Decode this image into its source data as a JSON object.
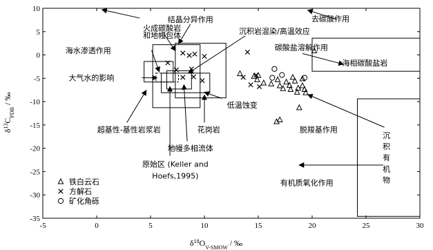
{
  "chart_data": {
    "type": "scatter",
    "xlim": [
      -5,
      30
    ],
    "ylim": [
      -35,
      10
    ],
    "xticks": [
      -5,
      0,
      5,
      10,
      15,
      20,
      25,
      30
    ],
    "yticks": [
      10,
      5,
      0,
      -5,
      -10,
      -15,
      -20,
      -25,
      -30,
      -35
    ],
    "xlabel": {
      "d": "δ",
      "sup": "18",
      "o": "O",
      "sub": "V-SMOW",
      "unit": " / ‰"
    },
    "ylabel": {
      "d": "δ",
      "sup": "13",
      "c": "C",
      "sub": "PDB",
      "unit": " / ‰"
    },
    "legend": [
      {
        "marker": "triangle",
        "label": "铁白云石"
      },
      {
        "marker": "cross",
        "label": "方解石"
      },
      {
        "marker": "circle",
        "label": "矿化角砾"
      }
    ],
    "series": [
      {
        "name": "铁白云石",
        "marker": "triangle",
        "points": [
          [
            13.3,
            -4.0
          ],
          [
            14.6,
            -4.6
          ],
          [
            15.0,
            -4.4
          ],
          [
            14.9,
            -5.3
          ],
          [
            15.5,
            -6.0
          ],
          [
            16.8,
            -5.3
          ],
          [
            16.2,
            -6.2
          ],
          [
            17.0,
            -6.6
          ],
          [
            17.3,
            -7.2
          ],
          [
            17.6,
            -5.8
          ],
          [
            17.9,
            -6.5
          ],
          [
            18.2,
            -4.8
          ],
          [
            18.4,
            -5.6
          ],
          [
            18.0,
            -7.4
          ],
          [
            18.7,
            -7.1
          ],
          [
            18.6,
            -8.0
          ],
          [
            19.1,
            -6.6
          ],
          [
            19.3,
            -7.4
          ],
          [
            19.4,
            -8.1
          ],
          [
            19.1,
            -5.1
          ],
          [
            18.8,
            -11.3
          ],
          [
            16.7,
            -14.3
          ],
          [
            17.0,
            -13.9
          ],
          [
            20.2,
            0.9
          ]
        ]
      },
      {
        "name": "方解石",
        "marker": "cross",
        "points": [
          [
            6.6,
            -1.7
          ],
          [
            7.4,
            -3.2
          ],
          [
            8.0,
            0.4
          ],
          [
            8.6,
            -0.1
          ],
          [
            9.1,
            0.2
          ],
          [
            10.0,
            -0.3
          ],
          [
            8.0,
            -4.8
          ],
          [
            9.0,
            -4.7
          ],
          [
            8.8,
            -3.0
          ],
          [
            9.8,
            -5.5
          ],
          [
            14.0,
            0.6
          ],
          [
            13.6,
            -4.8
          ],
          [
            14.3,
            -6.4
          ],
          [
            14.8,
            -4.3
          ],
          [
            15.1,
            -6.8
          ]
        ]
      },
      {
        "name": "矿化角砾",
        "marker": "circle",
        "points": [
          [
            16.5,
            -3.0
          ],
          [
            17.2,
            -4.3
          ],
          [
            16.3,
            -4.9
          ],
          [
            19.3,
            -4.9
          ]
        ]
      }
    ],
    "boxes": [
      {
        "x": [
          4.4,
          7.1
        ],
        "y": [
          -5.8,
          -1.4
        ]
      },
      {
        "x": [
          5.2,
          9.6
        ],
        "y": [
          -11.3,
          2.2
        ]
      },
      {
        "x": [
          6.0,
          10.5
        ],
        "y": [
          -8.1,
          -3.9
        ]
      },
      {
        "x": [
          6.5,
          8.8
        ],
        "y": [
          -7.3,
          -3.4
        ]
      },
      {
        "x": [
          7.3,
          12.0
        ],
        "y": [
          -9.2,
          2.5
        ]
      },
      {
        "x": [
          20.0,
          30.0
        ],
        "y": [
          -3.5,
          3.6
        ]
      },
      {
        "x": [
          24.2,
          30.0
        ],
        "y": [
          -34.6,
          -9.4
        ]
      }
    ],
    "dashed_box": {
      "x": [
        5.5,
        7.6
      ],
      "y": [
        -5.8,
        -3.9
      ]
    },
    "annotations": [
      {
        "text": "火成碳酸岩",
        "x": 4.3,
        "y": 5.8,
        "anchor": "start"
      },
      {
        "text": "和地幔包体",
        "x": 4.3,
        "y": 4.2,
        "anchor": "start"
      },
      {
        "text": "结晶分异作用",
        "x": 8.7,
        "y": 7.6,
        "anchor": "middle"
      },
      {
        "text": "沉积岩混染/高温效应",
        "x": 16.5,
        "y": 5.1,
        "anchor": "middle"
      },
      {
        "text": "去碳酸作用",
        "x": 21.7,
        "y": 7.8,
        "anchor": "middle"
      },
      {
        "text": "海水渗透作用",
        "x": -2.9,
        "y": 1.0,
        "anchor": "start"
      },
      {
        "text": "碳酸盐溶解作用",
        "x": 19.0,
        "y": 1.6,
        "anchor": "middle"
      },
      {
        "text": "海相碳酸盐岩",
        "x": 24.9,
        "y": -1.7,
        "anchor": "middle"
      },
      {
        "text": "大气水的影响",
        "x": -2.6,
        "y": -4.9,
        "anchor": "start"
      },
      {
        "text": "低温蚀变",
        "x": 12.1,
        "y": -10.7,
        "anchor": "start"
      },
      {
        "text": "超基性-基性岩浆岩",
        "x": 3.0,
        "y": -16.0,
        "anchor": "middle"
      },
      {
        "text": "花岗岩",
        "x": 10.4,
        "y": -16.0,
        "anchor": "middle"
      },
      {
        "text": "脱羧基作用",
        "x": 20.6,
        "y": -16.0,
        "anchor": "middle"
      },
      {
        "text": "地幔多相流体",
        "x": 8.7,
        "y": -20.0,
        "anchor": "middle"
      },
      {
        "text": "原始区 (Keller and",
        "x": 7.3,
        "y": -23.4,
        "anchor": "middle"
      },
      {
        "text": "Hoefs,1995)",
        "x": 7.3,
        "y": -25.9,
        "anchor": "middle"
      },
      {
        "text": "有机质氧化作用",
        "x": 19.5,
        "y": -27.4,
        "anchor": "middle"
      },
      {
        "text": "沉",
        "x": 26.9,
        "y": -17.2,
        "anchor": "middle"
      },
      {
        "text": "积",
        "x": 26.9,
        "y": -19.6,
        "anchor": "middle"
      },
      {
        "text": "有",
        "x": 26.9,
        "y": -22.0,
        "anchor": "middle"
      },
      {
        "text": "机",
        "x": 26.9,
        "y": -24.4,
        "anchor": "middle"
      },
      {
        "text": "物",
        "x": 26.9,
        "y": -26.8,
        "anchor": "middle"
      }
    ],
    "arrows": [
      {
        "from": [
          8.7,
          6.6
        ],
        "to": [
          7.6,
          2.4
        ]
      },
      {
        "from": [
          13.8,
          4.1
        ],
        "to": [
          8.5,
          -3.9
        ]
      },
      {
        "from": [
          22.3,
          7.6
        ],
        "to": [
          19.6,
          9.6
        ]
      },
      {
        "from": [
          5.1,
          1.0
        ],
        "to": [
          5.8,
          -3.6
        ]
      },
      {
        "from": [
          6.3,
          4.3
        ],
        "to": [
          7.3,
          0.9
        ]
      },
      {
        "from": [
          4.0,
          7.9
        ],
        "to": [
          0.5,
          9.7
        ]
      },
      {
        "from": [
          19.1,
          0.3
        ],
        "to": [
          22.9,
          -2.0
        ]
      },
      {
        "from": [
          4.2,
          -4.9
        ],
        "to": [
          5.6,
          -4.9
        ]
      },
      {
        "from": [
          11.6,
          -9.3
        ],
        "to": [
          10.0,
          -8.0
        ]
      },
      {
        "from": [
          2.8,
          -14.5
        ],
        "to": [
          4.6,
          -7.6
        ]
      },
      {
        "from": [
          10.0,
          -14.5
        ],
        "to": [
          10.0,
          -8.6
        ]
      },
      {
        "from": [
          8.4,
          -18.5
        ],
        "to": [
          8.1,
          -6.4
        ]
      },
      {
        "from": [
          6.8,
          -21.6
        ],
        "to": [
          6.8,
          -6.8
        ]
      },
      {
        "from": [
          26.7,
          -15.5
        ],
        "to": [
          19.6,
          -8.5
        ]
      },
      {
        "from": [
          26.6,
          -23.6
        ],
        "to": [
          18.8,
          -23.6
        ]
      }
    ]
  }
}
